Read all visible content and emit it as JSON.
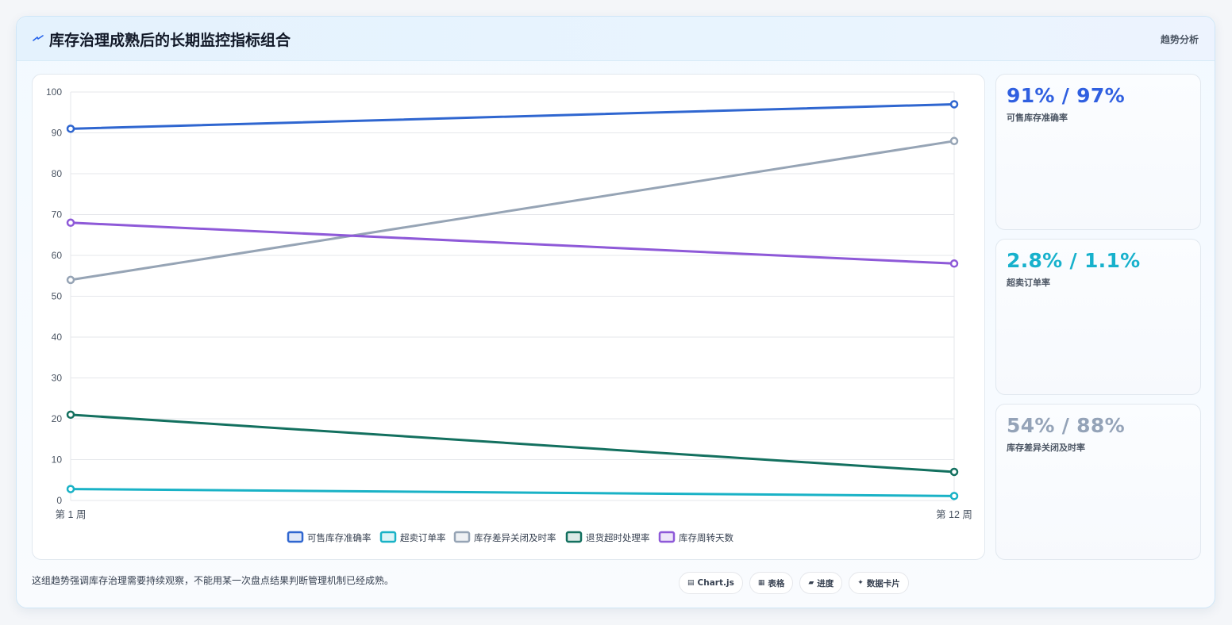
{
  "header": {
    "title": "库存治理成熟后的长期监控指标组合",
    "tag": "趋势分析",
    "icon": "lightning-icon"
  },
  "chart_data": {
    "type": "line",
    "title": "",
    "xlabel": "",
    "ylabel": "",
    "x": [
      "第 1 周",
      "第 12 周"
    ],
    "ylim": [
      0,
      100
    ],
    "yticks": [
      0,
      10,
      20,
      30,
      40,
      50,
      60,
      70,
      80,
      90,
      100
    ],
    "grid": true,
    "legend_position": "bottom",
    "series": [
      {
        "name": "可售库存准确率",
        "values": [
          91,
          97
        ],
        "color": "#2f66d0"
      },
      {
        "name": "超卖订单率",
        "values": [
          2.8,
          1.1
        ],
        "color": "#19b2c6"
      },
      {
        "name": "库存差异关闭及时率",
        "values": [
          54,
          88
        ],
        "color": "#96a4b5"
      },
      {
        "name": "退货超时处理率",
        "values": [
          21,
          7
        ],
        "color": "#13705f"
      },
      {
        "name": "库存周转天数",
        "values": [
          68,
          58
        ],
        "color": "#8e59d8"
      }
    ]
  },
  "stats": [
    {
      "value": "91% / 97%",
      "label": "可售库存准确率",
      "color": "#2f5fe0"
    },
    {
      "value": "2.8% / 1.1%",
      "label": "超卖订单率",
      "color": "#17b1cc"
    },
    {
      "value": "54% / 88%",
      "label": "库存差异关闭及时率",
      "color": "#94a3b8"
    }
  ],
  "footer": {
    "note": "这组趋势强调库存治理需要持续观察，不能用某一次盘点结果判断管理机制已经成熟。",
    "pills": [
      {
        "label": "Chart.js",
        "icon": "chart-icon",
        "glyph": "▤"
      },
      {
        "label": "表格",
        "icon": "table-icon",
        "glyph": "▦"
      },
      {
        "label": "进度",
        "icon": "progress-icon",
        "glyph": "▰"
      },
      {
        "label": "数据卡片",
        "icon": "sparkle-icon",
        "glyph": "✦"
      }
    ]
  }
}
